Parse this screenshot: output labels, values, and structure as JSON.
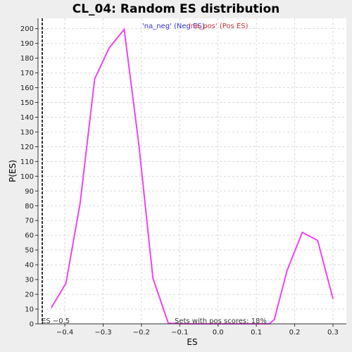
{
  "chart_data": {
    "type": "line",
    "title": "CL_04: Random ES distribution",
    "xlabel": "ES",
    "ylabel": "P(ES)",
    "xlim": [
      -0.47,
      0.335
    ],
    "ylim": [
      0,
      207
    ],
    "x_ticks": [
      -0.4,
      -0.3,
      -0.2,
      -0.1,
      0.0,
      0.1,
      0.2,
      0.3
    ],
    "x_tick_labels": [
      "−0.4",
      "−0.3",
      "−0.2",
      "−0.1",
      "0.0",
      "0.1",
      "0.2",
      "0.3"
    ],
    "y_ticks": [
      0,
      10,
      20,
      30,
      40,
      50,
      60,
      70,
      80,
      90,
      100,
      110,
      120,
      130,
      140,
      150,
      160,
      170,
      180,
      190,
      200
    ],
    "grid": true,
    "legend": [
      {
        "label": "'na_neg' (Neg ES)",
        "color": "#3333cc"
      },
      {
        "label": "'na_pos' (Pos ES)",
        "color": "#cc3333"
      }
    ],
    "series": [
      {
        "color": "#ee44ee",
        "x": [
          -0.435,
          -0.397,
          -0.36,
          -0.322,
          -0.284,
          -0.245,
          -0.207,
          -0.17,
          -0.13,
          -0.093,
          -0.055,
          -0.018,
          0.02,
          0.058,
          0.096,
          0.134,
          0.147,
          0.18,
          0.22,
          0.26,
          0.3
        ],
        "y": [
          11,
          27.5,
          82,
          166,
          187,
          199.5,
          122,
          31,
          0.5,
          0,
          0,
          0,
          0,
          0,
          0,
          0,
          3,
          36,
          62,
          56.5,
          17
        ]
      }
    ],
    "reference_line": {
      "x": -0.459,
      "label": "ES −0.5",
      "style": "dashed"
    },
    "annotation": "Sets with pos scores: 18%"
  }
}
